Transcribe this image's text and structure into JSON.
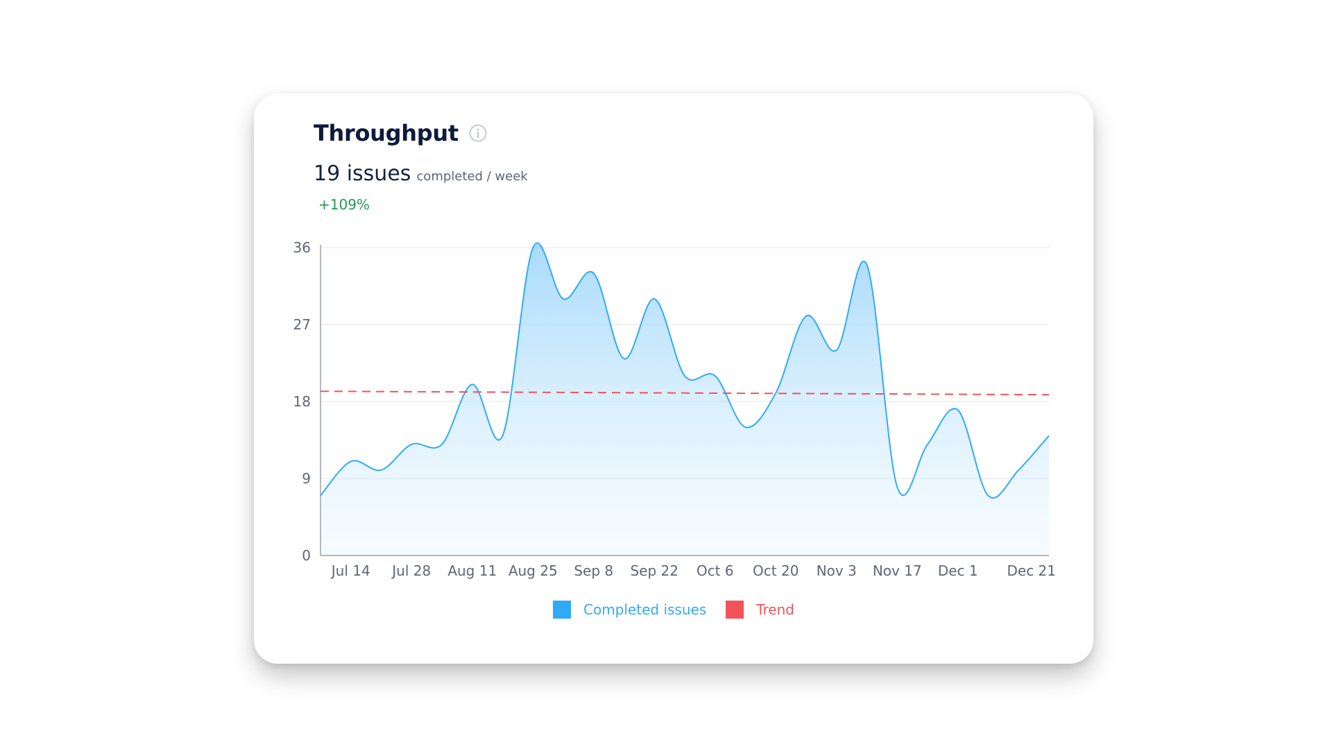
{
  "card": {
    "title": "Throughput",
    "info_icon": "info-circle-icon",
    "metric_value": "19 issues",
    "metric_unit": "completed / week",
    "metric_change": "+109%",
    "change_color": "#239a52"
  },
  "chart_data": {
    "type": "area",
    "xlabel": "",
    "ylabel": "",
    "ylim": [
      0,
      36
    ],
    "y_ticks": [
      0,
      9,
      18,
      27,
      36
    ],
    "x_tick_labels": [
      "Jul 14",
      "Jul 28",
      "Aug 11",
      "Aug 25",
      "Sep 8",
      "Sep 22",
      "Oct 6",
      "Oct 20",
      "Nov 3",
      "Nov 17",
      "Dec 1",
      "Dec 21"
    ],
    "grid": true,
    "legend_position": "bottom",
    "series": [
      {
        "name": "Completed issues",
        "color": "#30aaf7",
        "x": [
          "Jul 7",
          "Jul 14",
          "Jul 21",
          "Jul 28",
          "Aug 4",
          "Aug 11",
          "Aug 18",
          "Aug 25",
          "Sep 1",
          "Sep 8",
          "Sep 15",
          "Sep 22",
          "Sep 29",
          "Oct 6",
          "Oct 13",
          "Oct 20",
          "Oct 27",
          "Nov 3",
          "Nov 10",
          "Nov 17",
          "Nov 24",
          "Dec 1",
          "Dec 8",
          "Dec 15",
          "Dec 22"
        ],
        "values": [
          7,
          11,
          10,
          13,
          13,
          20,
          14,
          36,
          30,
          33,
          23,
          30,
          21,
          21,
          15,
          19,
          28,
          24,
          34,
          8,
          13,
          17,
          7,
          10,
          14
        ]
      },
      {
        "name": "Trend",
        "color": "#f2525a",
        "style": "dashed",
        "start": 19.2,
        "end": 18.8
      }
    ]
  }
}
